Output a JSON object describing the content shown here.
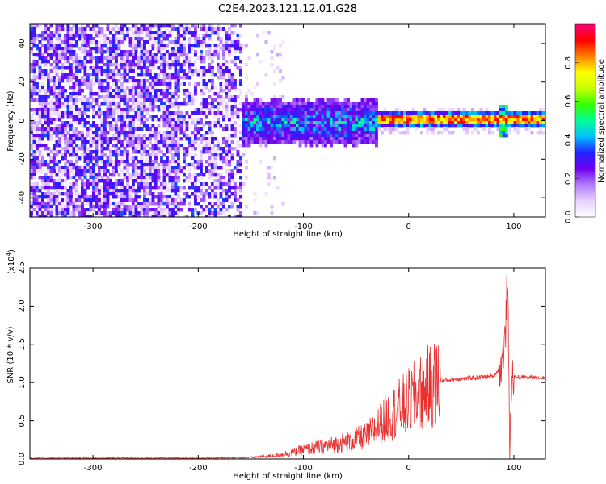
{
  "title": "C2E4.2023.121.12.01.G28",
  "chart_data": [
    {
      "type": "heatmap",
      "xlabel": "Height of straight line (km)",
      "ylabel": "Frequency (Hz)",
      "xlim": [
        -360,
        130
      ],
      "ylim": [
        -50,
        50
      ],
      "xticks": [
        -300,
        -200,
        -100,
        0,
        100
      ],
      "yticks": [
        -40,
        -20,
        0,
        20,
        40
      ],
      "colorbar": {
        "label": "Normalized spectral amplitude",
        "range": [
          0,
          1
        ],
        "ticks": [
          "0.0",
          "0.2",
          "0.4",
          "0.6",
          "0.8"
        ],
        "colormap": [
          "#ffffff",
          "#e8d0ff",
          "#b27cff",
          "#7000ee",
          "#2222ff",
          "#00bfff",
          "#00ff9a",
          "#33ff00",
          "#c8ff00",
          "#ffff00",
          "#ff7f00",
          "#ff0000",
          "#ff0077"
        ]
      },
      "regions": [
        {
          "x": [
            -360,
            -160
          ],
          "description_level": 0.12,
          "f_range": [
            -50,
            50
          ]
        },
        {
          "x": [
            -160,
            -30
          ],
          "description_level": 0.3,
          "f_range": [
            -10,
            10
          ]
        },
        {
          "x": [
            -30,
            130
          ],
          "description_level": 0.9,
          "f_center": 1
        }
      ],
      "grid": false
    },
    {
      "type": "line",
      "xlabel": "Height of straight line (km)",
      "ylabel": "SNR (10 * v/v)",
      "scale_label": "(x10",
      "scale_exp": "4",
      "scale_close": ")",
      "xlim": [
        -360,
        130
      ],
      "ylim": [
        0,
        2.5
      ],
      "xticks": [
        -300,
        -200,
        -100,
        0,
        100
      ],
      "yticks": [
        "0.0",
        "0.5",
        "1.0",
        "1.5",
        "2.0",
        "2.5"
      ],
      "series": [
        {
          "color": "#e83030",
          "x": [
            -360,
            -300,
            -200,
            -150,
            -130,
            -120,
            -110,
            -100,
            -80,
            -60,
            -40,
            -30,
            -20,
            -10,
            0,
            10,
            20,
            30,
            40,
            50,
            60,
            70,
            80,
            88,
            92,
            94,
            96,
            98,
            100,
            110,
            120,
            130
          ],
          "y": [
            0.01,
            0.01,
            0.01,
            0.02,
            0.04,
            0.06,
            0.09,
            0.12,
            0.17,
            0.22,
            0.3,
            0.42,
            0.55,
            0.65,
            0.75,
            0.85,
            0.95,
            1.02,
            1.04,
            1.05,
            1.06,
            1.07,
            1.08,
            1.2,
            1.6,
            2.5,
            0.05,
            1.1,
            1.07,
            1.07,
            1.07,
            1.06
          ]
        }
      ],
      "grid": false
    }
  ]
}
